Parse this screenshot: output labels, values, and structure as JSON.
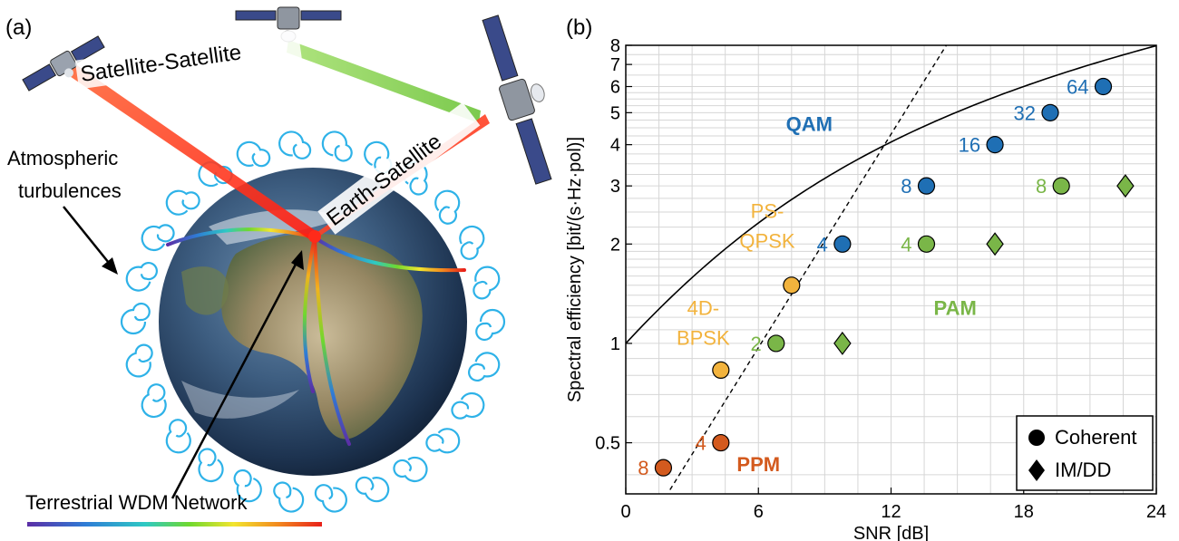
{
  "panel_a": {
    "label": "(a)",
    "satellite_link_label": "Satellite-Satellite",
    "earth_link_label": "Earth-Satellite",
    "turbulence_label_line1": "Atmospheric",
    "turbulence_label_line2": "turbulences",
    "network_label": "Terrestrial WDM Network",
    "colors": {
      "red_beam": "#ff2a1a",
      "green_beam": "#7fd43a",
      "spiral": "#2eb2e8"
    }
  },
  "panel_b": {
    "label": "(b)"
  },
  "chart_data": {
    "type": "scatter",
    "xlabel": "SNR [dB]",
    "ylabel": "Spectral efficiency [bit/(s·Hz·pol)]",
    "xlim": [
      0,
      24
    ],
    "ylim": [
      0.35,
      8
    ],
    "y_scale": "log",
    "grid": true,
    "x_ticks": [
      0,
      6,
      12,
      18,
      24
    ],
    "y_ticks": [
      {
        "value": 0.5,
        "label": "0.5"
      },
      {
        "value": 1,
        "label": "1"
      },
      {
        "value": 2,
        "label": "2"
      },
      {
        "value": 3,
        "label": "3"
      },
      {
        "value": 4,
        "label": "4"
      },
      {
        "value": 5,
        "label": "5"
      },
      {
        "value": 6,
        "label": "6"
      },
      {
        "value": 7,
        "label": "7"
      },
      {
        "value": 8,
        "label": "8"
      }
    ],
    "legend": {
      "placement": "bottom-right",
      "entries": [
        {
          "label": "Coherent",
          "marker": "circle"
        },
        {
          "label": "IM/DD",
          "marker": "diamond"
        }
      ]
    },
    "series": [
      {
        "color": "#1f6fb4",
        "marker": "circle",
        "points": [
          {
            "x": 9.8,
            "y": 2,
            "label": "4"
          },
          {
            "x": 13.6,
            "y": 3,
            "label": "8"
          },
          {
            "x": 16.7,
            "y": 4,
            "label": "16"
          },
          {
            "x": 19.2,
            "y": 5,
            "label": "32"
          },
          {
            "x": 21.6,
            "y": 6,
            "label": "64"
          }
        ]
      },
      {
        "color": "#7ab648",
        "marker": "circle",
        "points": [
          {
            "x": 6.8,
            "y": 1,
            "label": "2"
          },
          {
            "x": 13.6,
            "y": 2,
            "label": "4"
          },
          {
            "x": 19.7,
            "y": 3,
            "label": "8"
          }
        ]
      },
      {
        "color": "#7ab648",
        "marker": "diamond",
        "points": [
          {
            "x": 9.8,
            "y": 1
          },
          {
            "x": 16.7,
            "y": 2
          },
          {
            "x": 22.6,
            "y": 3
          }
        ]
      },
      {
        "color": "#d35a1e",
        "marker": "circle",
        "points": [
          {
            "x": 1.7,
            "y": 0.42,
            "label": "8"
          },
          {
            "x": 4.3,
            "y": 0.5,
            "label": "4"
          }
        ]
      },
      {
        "color": "#f2b33d",
        "marker": "circle",
        "points": [
          {
            "x": 4.3,
            "y": 0.83
          },
          {
            "x": 7.5,
            "y": 1.5
          }
        ]
      }
    ],
    "annotations": [
      {
        "text": "QAM",
        "x": 8.3,
        "y": 4.4,
        "color": "#1f6fb4"
      },
      {
        "text": "PAM",
        "x": 14.9,
        "y": 1.22,
        "color": "#7ab648"
      },
      {
        "text": "PPM",
        "x": 6.0,
        "y": 0.41,
        "color": "#d35a1e"
      },
      {
        "text": "PS-",
        "x": 6.4,
        "y": 2.4,
        "color": "#f2b33d"
      },
      {
        "text": "QPSK",
        "x": 6.4,
        "y": 1.95,
        "color": "#f2b33d"
      },
      {
        "text": "4D-",
        "x": 3.5,
        "y": 1.22,
        "color": "#f2b33d"
      },
      {
        "text": "BPSK",
        "x": 3.5,
        "y": 0.99,
        "color": "#f2b33d"
      }
    ],
    "curves": [
      {
        "style": "solid",
        "description": "capacity",
        "snr_db_from": 0,
        "snr_db_to": 24
      },
      {
        "style": "dashed",
        "from": {
          "x": 2.0,
          "y": 0.36
        },
        "to": {
          "x": 14.5,
          "y": 8
        }
      }
    ]
  }
}
